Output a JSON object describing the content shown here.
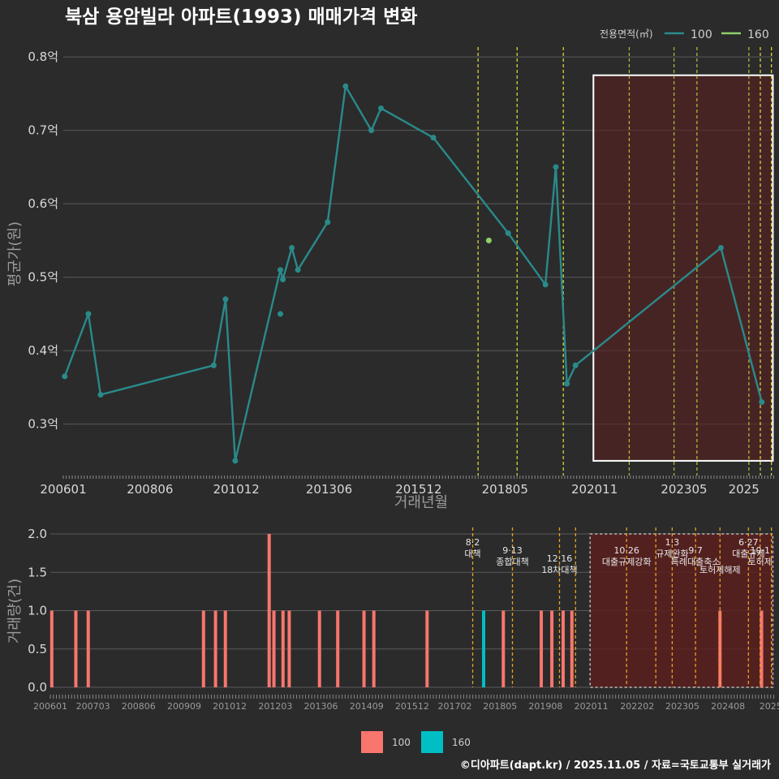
{
  "title": "북삼 용암빌라 아파트(1993) 매매가격 변화",
  "footer": "©디아파트(dapt.kr) / 2025.11.05 / 자료=국토교통부 실거래가",
  "legend": {
    "title": "전용면적(㎡)",
    "items": [
      {
        "label": "100",
        "color": "#2a8a8a"
      },
      {
        "label": "160",
        "color": "#8ed06a"
      }
    ]
  },
  "bar_legend": [
    {
      "label": "100",
      "color": "#f8766d"
    },
    {
      "label": "160",
      "color": "#00bfc4"
    }
  ],
  "chart_data": [
    {
      "type": "line",
      "title": "북삼 용암빌라 아파트(1993) 매매가격 변화",
      "xlabel": "거래년월",
      "ylabel": "평균가(원)",
      "yticks": [
        0.3,
        0.4,
        0.5,
        0.6,
        0.7,
        0.8
      ],
      "ytick_labels": [
        "0.3억",
        "0.4억",
        "0.5억",
        "0.6억",
        "0.7억",
        "0.8억"
      ],
      "ylim": [
        0.23,
        0.82
      ],
      "xlim": [
        2006.0,
        2025.8
      ],
      "xticks": [
        2006.0,
        2008.42,
        2010.83,
        2013.42,
        2015.92,
        2018.33,
        2020.83,
        2023.33,
        2025.0
      ],
      "xtick_labels": [
        "200601",
        "200806",
        "201012",
        "201306",
        "201512",
        "201805",
        "202011",
        "202305",
        "2025"
      ],
      "series": [
        {
          "name": "100",
          "color": "#2a8a8a",
          "x": [
            2006.04,
            2006.7,
            2007.04,
            2010.2,
            2010.53,
            2010.8,
            2012.06,
            2012.13,
            2012.38,
            2012.55,
            2013.38,
            2013.88,
            2014.6,
            2014.87,
            2016.33,
            2018.42,
            2019.46,
            2019.75,
            2020.06,
            2020.3,
            2024.36,
            2025.5
          ],
          "y": [
            0.365,
            0.45,
            0.34,
            0.38,
            0.47,
            0.25,
            0.51,
            0.497,
            0.54,
            0.51,
            0.575,
            0.76,
            0.7,
            0.73,
            0.69,
            0.56,
            0.49,
            0.65,
            0.355,
            0.38,
            0.54,
            0.33
          ]
        },
        {
          "name": "160",
          "color": "#8ed06a",
          "x": [
            2017.88
          ],
          "y": [
            0.55
          ]
        }
      ],
      "extra_points": [
        {
          "x": 2012.06,
          "y": 0.45,
          "series": "100"
        }
      ],
      "event_lines": [
        {
          "x": 2017.58,
          "color": "#d4d43a"
        },
        {
          "x": 2018.67,
          "color": "#d4d43a"
        },
        {
          "x": 2019.96,
          "color": "#d4d43a"
        },
        {
          "x": 2021.8,
          "color": "#a8b83a"
        },
        {
          "x": 2023.05,
          "color": "#a8b83a"
        },
        {
          "x": 2023.69,
          "color": "#a8b83a"
        },
        {
          "x": 2025.14,
          "color": "#a8b83a"
        },
        {
          "x": 2025.46,
          "color": "#d4d43a"
        },
        {
          "x": 2025.77,
          "color": "#d4d43a"
        }
      ],
      "highlight_range": [
        2020.8,
        2025.81
      ],
      "highlight_y": [
        0.25,
        0.775
      ]
    },
    {
      "type": "bar",
      "xlabel": "",
      "ylabel": "거래량(건)",
      "yticks": [
        0.0,
        0.5,
        1.0,
        1.5,
        2.0
      ],
      "ytick_labels": [
        "0.0",
        "0.5",
        "1.0",
        "1.5",
        "2.0"
      ],
      "ylim": [
        0,
        2.0
      ],
      "xlim": [
        2006.0,
        2025.8
      ],
      "xticks": [
        2006.0,
        2007.17,
        2008.42,
        2009.67,
        2010.92,
        2012.17,
        2013.42,
        2014.67,
        2015.92,
        2017.09,
        2018.33,
        2019.58,
        2020.83,
        2022.09,
        2023.33,
        2024.58,
        2025.75
      ],
      "xtick_labels": [
        "200601",
        "200703",
        "200806",
        "200909",
        "201012",
        "201203",
        "201306",
        "201409",
        "201512",
        "201702",
        "201805",
        "201908",
        "202011",
        "202202",
        "202305",
        "202408",
        "2025"
      ],
      "series": [
        {
          "name": "100",
          "color": "#f8766d",
          "x": [
            2006.04,
            2006.7,
            2007.04,
            2010.2,
            2010.53,
            2010.8,
            2012.0,
            2012.13,
            2012.38,
            2012.55,
            2013.38,
            2013.88,
            2014.6,
            2014.87,
            2016.33,
            2018.42,
            2019.46,
            2019.75,
            2020.06,
            2020.3,
            2024.36,
            2025.5
          ],
          "values": [
            1,
            1,
            1,
            1,
            1,
            1,
            2,
            1,
            1,
            1,
            1,
            1,
            1,
            1,
            1,
            1,
            1,
            1,
            1,
            1,
            1,
            1
          ]
        },
        {
          "name": "160",
          "color": "#00bfc4",
          "x": [
            2017.88
          ],
          "values": [
            1
          ]
        }
      ],
      "events": [
        {
          "x": 2017.58,
          "date": "8·2",
          "label": "대책"
        },
        {
          "x": 2018.67,
          "date": "9·13",
          "label": "종합대책"
        },
        {
          "x": 2019.96,
          "date": "12·16",
          "label": "18차대책"
        },
        {
          "x": 2020.4,
          "date": "",
          "label": ""
        },
        {
          "x": 2021.8,
          "date": "10·26",
          "label": "대출규제강화"
        },
        {
          "x": 2022.6,
          "date": "",
          "label": ""
        },
        {
          "x": 2023.05,
          "date": "1·3",
          "label": "규제완화"
        },
        {
          "x": 2023.69,
          "date": "9·7",
          "label": "특례대출축소"
        },
        {
          "x": 2024.36,
          "date": "",
          "label": "토허제해제"
        },
        {
          "x": 2025.14,
          "date": "6·27",
          "label": "대출규제"
        },
        {
          "x": 2025.46,
          "date": "10·1",
          "label": "토허제"
        },
        {
          "x": 2025.77,
          "date": "",
          "label": ""
        }
      ],
      "highlight_range": [
        2020.8,
        2025.81
      ]
    }
  ]
}
